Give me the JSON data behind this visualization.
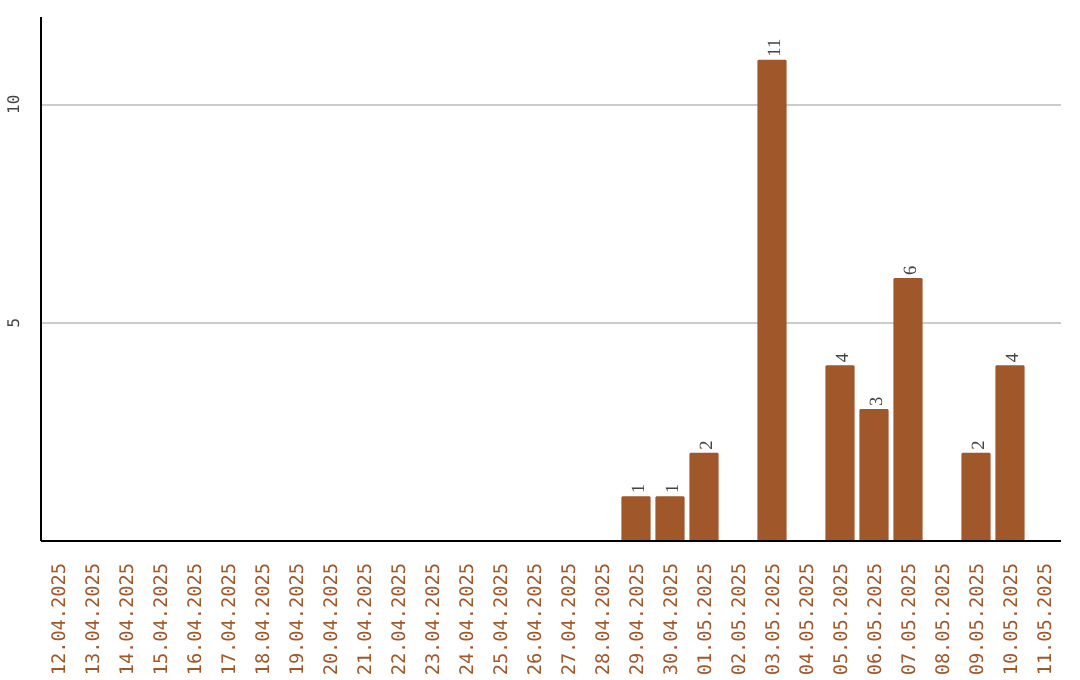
{
  "chart_data": {
    "type": "bar",
    "categories": [
      "12.04.2025",
      "13.04.2025",
      "14.04.2025",
      "15.04.2025",
      "16.04.2025",
      "17.04.2025",
      "18.04.2025",
      "19.04.2025",
      "20.04.2025",
      "21.04.2025",
      "22.04.2025",
      "23.04.2025",
      "24.04.2025",
      "25.04.2025",
      "26.04.2025",
      "27.04.2025",
      "28.04.2025",
      "29.04.2025",
      "30.04.2025",
      "01.05.2025",
      "02.05.2025",
      "03.05.2025",
      "04.05.2025",
      "05.05.2025",
      "06.05.2025",
      "07.05.2025",
      "08.05.2025",
      "09.05.2025",
      "10.05.2025",
      "11.05.2025"
    ],
    "values": [
      null,
      null,
      null,
      null,
      null,
      null,
      null,
      null,
      null,
      null,
      null,
      null,
      null,
      null,
      null,
      null,
      null,
      1,
      1,
      2,
      null,
      11,
      null,
      4,
      3,
      6,
      null,
      2,
      4,
      null
    ],
    "color": "#a0572a",
    "ylim": [
      0,
      12
    ],
    "yticks": [
      5,
      10
    ],
    "grid": "y",
    "data_labels": true
  }
}
